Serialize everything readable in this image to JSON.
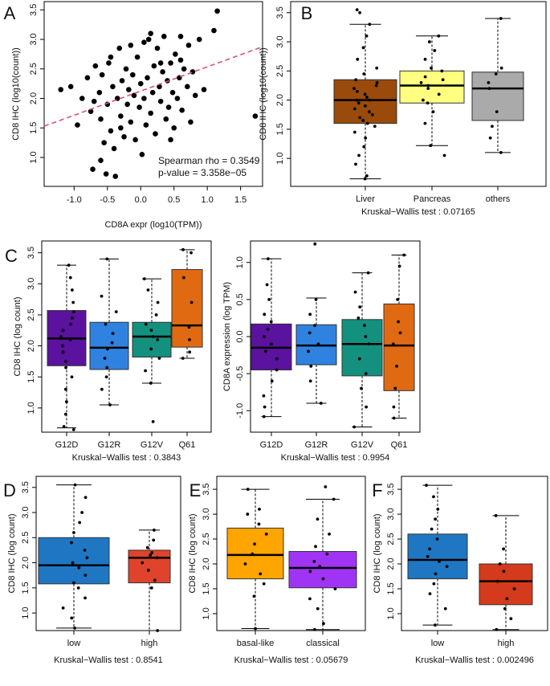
{
  "chart_data": [
    {
      "panel": "A",
      "type": "scatter",
      "ylabel": "CD8 IHC (log10(count))",
      "xlabel": "CD8A expr (log10(TPM))",
      "xlim": [
        -1.45,
        1.83
      ],
      "ylim": [
        0.51,
        3.64
      ],
      "xticks": [
        {
          "value": -1,
          "label": "-1.0"
        },
        {
          "value": -0.5,
          "label": "-0.5"
        },
        {
          "value": 0,
          "label": "0.0"
        },
        {
          "value": 0.5,
          "label": "0.5"
        },
        {
          "value": 1,
          "label": "1.0"
        },
        {
          "value": 1.5,
          "label": "1.5"
        }
      ],
      "yticks": [
        {
          "value": 1,
          "label": "1.0"
        },
        {
          "value": 1.5,
          "label": "1.5"
        },
        {
          "value": 2,
          "label": "2.0"
        },
        {
          "value": 2.5,
          "label": "2.5"
        },
        {
          "value": 3,
          "label": "3.0"
        },
        {
          "value": 3.5,
          "label": "3.5"
        }
      ],
      "x": [
        -1.2,
        -1.05,
        -0.95,
        -0.88,
        -0.8,
        -0.75,
        -0.72,
        -0.68,
        -0.62,
        -0.6,
        -0.58,
        -0.55,
        -0.52,
        -0.5,
        -0.48,
        -0.45,
        -0.42,
        -0.4,
        -0.38,
        -0.35,
        -0.32,
        -0.3,
        -0.28,
        -0.25,
        -0.22,
        -0.2,
        -0.18,
        -0.15,
        -0.12,
        -0.1,
        -0.08,
        -0.05,
        -0.02,
        0.0,
        0.02,
        0.05,
        0.08,
        0.1,
        0.12,
        0.15,
        0.18,
        0.2,
        0.22,
        0.25,
        0.28,
        0.3,
        0.33,
        0.35,
        0.38,
        0.4,
        0.42,
        0.45,
        0.48,
        0.5,
        0.52,
        0.55,
        0.58,
        0.6,
        0.62,
        0.65,
        0.7,
        0.72,
        0.75,
        0.78,
        0.82,
        0.88,
        0.95,
        1.1,
        1.15,
        1.72,
        -0.6,
        -0.3,
        0.3,
        -0.15,
        0.45,
        0.05,
        -0.45,
        0.15,
        0.6,
        -0.7
      ],
      "y": [
        2.15,
        2.2,
        1.55,
        2.0,
        2.35,
        1.78,
        0.8,
        2.55,
        2.1,
        1.65,
        2.4,
        1.25,
        0.72,
        1.9,
        2.6,
        1.45,
        2.2,
        1.15,
        0.68,
        2.0,
        2.85,
        1.7,
        2.3,
        1.35,
        2.5,
        1.9,
        2.15,
        1.6,
        2.4,
        2.05,
        1.3,
        2.7,
        1.85,
        2.25,
        1.05,
        2.95,
        1.55,
        2.35,
        3.0,
        1.75,
        2.1,
        2.55,
        1.4,
        2.85,
        2.2,
        1.95,
        2.45,
        3.05,
        1.65,
        2.3,
        1.85,
        2.6,
        2.1,
        1.5,
        2.75,
        2.0,
        2.35,
        3.05,
        1.8,
        2.5,
        2.2,
        2.9,
        1.6,
        2.45,
        2.05,
        3.0,
        2.15,
        3.15,
        3.48,
        1.7,
        0.95,
        1.5,
        2.6,
        2.9,
        1.3,
        2.0,
        2.7,
        3.1,
        2.65,
        1.95
      ],
      "color": "#000000",
      "fit_line": {
        "x": [
          -1.45,
          1.83
        ],
        "y": [
          1.53,
          2.875
        ],
        "color": "#d9527a"
      },
      "annotations": [
        "Spearman rho = 0.3549",
        "p-value = 3.358e−05"
      ]
    },
    {
      "panel": "B",
      "type": "box",
      "ylabel": "CD8 IHC (log10(count))",
      "xlabel": "Kruskal−Wallis test : 0.07165",
      "ylim": [
        0.52,
        3.69
      ],
      "yticks": [
        {
          "value": 1,
          "label": "1.0"
        },
        {
          "value": 1.5,
          "label": "1.5"
        },
        {
          "value": 2,
          "label": "2.0"
        },
        {
          "value": 2.5,
          "label": "2.5"
        },
        {
          "value": 3,
          "label": "3.0"
        },
        {
          "value": 3.5,
          "label": "3.5"
        }
      ],
      "categories": [
        "Liver",
        "Pancreas",
        "others"
      ],
      "colors": [
        "#9a4a0a",
        "#ffff80",
        "#aaaaaa"
      ],
      "boxes": [
        {
          "low": 0.65,
          "q1": 1.6,
          "median": 2.0,
          "q3": 2.35,
          "high": 3.3
        },
        {
          "low": 1.22,
          "q1": 1.95,
          "median": 2.25,
          "q3": 2.5,
          "high": 3.1
        },
        {
          "low": 1.1,
          "q1": 1.65,
          "median": 2.2,
          "q3": 2.48,
          "high": 3.4
        }
      ],
      "points": [
        [
          0.65,
          0.7,
          0.9,
          1.05,
          1.2,
          1.35,
          1.45,
          1.55,
          1.6,
          1.65,
          1.7,
          1.75,
          1.8,
          1.85,
          1.9,
          1.95,
          2.0,
          2.0,
          2.05,
          2.1,
          2.15,
          2.2,
          2.25,
          2.3,
          2.35,
          2.45,
          2.55,
          2.7,
          2.9,
          3.1,
          3.3,
          3.5,
          3.55
        ],
        [
          1.05,
          1.22,
          1.6,
          1.8,
          1.95,
          2.0,
          2.1,
          2.2,
          2.25,
          2.3,
          2.35,
          2.4,
          2.5,
          2.55,
          2.7,
          2.85,
          3.0,
          3.1
        ],
        [
          1.1,
          1.35,
          1.55,
          1.8,
          2.2,
          2.3,
          2.45,
          2.55,
          3.4
        ]
      ]
    },
    {
      "panel": "C",
      "type": "box",
      "ylabel": "CD8 IHC (log count)",
      "xlabel": "Kruskal−Wallis test : 0.3843",
      "ylim": [
        0.61,
        3.69
      ],
      "yticks": [
        {
          "value": 1,
          "label": "1.0"
        },
        {
          "value": 1.5,
          "label": "1.5"
        },
        {
          "value": 2,
          "label": "2.0"
        },
        {
          "value": 2.5,
          "label": "2.5"
        },
        {
          "value": 3,
          "label": "3.0"
        },
        {
          "value": 3.5,
          "label": "3.5"
        }
      ],
      "categories": [
        "G12D",
        "G12R",
        "G12V",
        "Q61"
      ],
      "colors": [
        "#5b129e",
        "#2f82e0",
        "#14907f",
        "#e06a12"
      ],
      "boxes": [
        {
          "low": 0.68,
          "q1": 1.68,
          "median": 2.12,
          "q3": 2.57,
          "high": 3.3
        },
        {
          "low": 1.05,
          "q1": 1.62,
          "median": 1.97,
          "q3": 2.38,
          "high": 3.4
        },
        {
          "low": 1.4,
          "q1": 1.82,
          "median": 2.15,
          "q3": 2.38,
          "high": 3.08
        },
        {
          "low": 1.8,
          "q1": 1.98,
          "median": 2.33,
          "q3": 3.23,
          "high": 3.55
        }
      ],
      "points": [
        [
          0.65,
          0.7,
          0.9,
          1.1,
          1.3,
          1.5,
          1.65,
          1.75,
          1.9,
          2.0,
          2.1,
          2.15,
          2.25,
          2.35,
          2.45,
          2.55,
          2.7,
          2.9,
          3.1,
          3.3
        ],
        [
          1.05,
          1.3,
          1.5,
          1.65,
          1.8,
          1.95,
          2.05,
          2.2,
          2.35,
          2.55,
          2.8,
          3.4
        ],
        [
          0.78,
          1.4,
          1.6,
          1.8,
          1.95,
          2.1,
          2.15,
          2.25,
          2.35,
          2.5,
          2.7,
          2.9,
          3.08
        ],
        [
          1.8,
          1.9,
          2.1,
          2.3,
          2.7,
          3.1,
          3.5,
          3.55
        ]
      ]
    },
    {
      "type": "box",
      "ylabel": "CD8A expression (log TPM)",
      "xlabel": "Kruskal−Wallis test : 0.9954",
      "ylim": [
        -1.29,
        1.29
      ],
      "yticks": [
        {
          "value": -1,
          "label": "-1.0"
        },
        {
          "value": -0.5,
          "label": "-0.5"
        },
        {
          "value": 0,
          "label": "0.0"
        },
        {
          "value": 0.5,
          "label": "0.5"
        },
        {
          "value": 1,
          "label": "1.0"
        }
      ],
      "categories": [
        "G12D",
        "G12R",
        "G12V",
        "Q61"
      ],
      "colors": [
        "#5b129e",
        "#2f82e0",
        "#14907f",
        "#e06a12"
      ],
      "boxes": [
        {
          "low": -1.08,
          "q1": -0.45,
          "median": -0.15,
          "q3": 0.17,
          "high": 1.05
        },
        {
          "low": -0.9,
          "q1": -0.38,
          "median": -0.12,
          "q3": 0.16,
          "high": 0.52
        },
        {
          "low": -1.22,
          "q1": -0.53,
          "median": -0.1,
          "q3": 0.23,
          "high": 0.86
        },
        {
          "low": -1.1,
          "q1": -0.73,
          "median": -0.12,
          "q3": 0.44,
          "high": 1.1
        }
      ],
      "points": [
        [
          -1.08,
          -0.95,
          -0.8,
          -0.6,
          -0.45,
          -0.3,
          -0.2,
          -0.1,
          0.0,
          0.1,
          0.2,
          0.3,
          0.5,
          0.7,
          1.05
        ],
        [
          -0.9,
          -0.6,
          -0.4,
          -0.2,
          -0.1,
          0.05,
          0.15,
          0.3,
          0.5,
          1.25
        ],
        [
          -1.22,
          -0.95,
          -0.7,
          -0.5,
          -0.3,
          -0.1,
          0.0,
          0.15,
          0.25,
          0.4,
          0.6,
          0.86
        ],
        [
          -1.1,
          -0.95,
          -0.7,
          -0.4,
          -0.1,
          0.05,
          0.2,
          0.5,
          0.95,
          1.1
        ]
      ]
    },
    {
      "panel": "D",
      "type": "box",
      "ylabel": "CD8 IHC (log count)",
      "xlabel": "Kruskal−Wallis test : 0.8541",
      "ylim": [
        0.65,
        3.72
      ],
      "yticks": [
        {
          "value": 1,
          "label": "1.0"
        },
        {
          "value": 1.5,
          "label": "1.5"
        },
        {
          "value": 2,
          "label": "2.0"
        },
        {
          "value": 2.5,
          "label": "2.5"
        },
        {
          "value": 3,
          "label": "3.0"
        },
        {
          "value": 3.5,
          "label": "3.5"
        }
      ],
      "categories": [
        "low",
        "high"
      ],
      "colors": [
        "#1f77c4",
        "#e0432c"
      ],
      "boxes": [
        {
          "low": 0.7,
          "q1": 1.58,
          "median": 1.95,
          "q3": 2.5,
          "high": 3.55
        },
        {
          "low": 0.65,
          "q1": 1.6,
          "median": 2.1,
          "q3": 2.25,
          "high": 2.65
        }
      ],
      "points": [
        [
          0.7,
          0.9,
          1.1,
          1.3,
          1.5,
          1.6,
          1.75,
          1.9,
          2.0,
          2.1,
          2.25,
          2.4,
          2.6,
          2.8,
          3.0,
          3.3,
          3.55
        ],
        [
          0.65,
          1.5,
          1.65,
          1.85,
          2.0,
          2.1,
          2.15,
          2.2,
          2.3,
          2.45,
          2.65
        ]
      ]
    },
    {
      "panel": "E",
      "type": "box",
      "ylabel": "CD8 IHC (log count)",
      "xlabel": "Kruskal−Wallis test : 0.05679",
      "ylim": [
        0.66,
        3.76
      ],
      "yticks": [
        {
          "value": 1,
          "label": "1.0"
        },
        {
          "value": 1.5,
          "label": "1.5"
        },
        {
          "value": 2,
          "label": "2.0"
        },
        {
          "value": 2.5,
          "label": "2.5"
        },
        {
          "value": 3,
          "label": "3.0"
        },
        {
          "value": 3.5,
          "label": "3.5"
        }
      ],
      "categories": [
        "basal-like",
        "classical"
      ],
      "colors": [
        "#ffa500",
        "#a034f5"
      ],
      "boxes": [
        {
          "low": 0.7,
          "q1": 1.7,
          "median": 2.18,
          "q3": 2.72,
          "high": 3.5
        },
        {
          "low": 0.68,
          "q1": 1.52,
          "median": 1.92,
          "q3": 2.25,
          "high": 3.3
        }
      ],
      "points": [
        [
          0.7,
          1.35,
          1.6,
          1.8,
          2.0,
          2.2,
          2.4,
          2.6,
          2.8,
          3.0,
          3.1,
          3.5
        ],
        [
          0.68,
          0.8,
          1.1,
          1.3,
          1.5,
          1.7,
          1.85,
          1.95,
          2.05,
          2.2,
          2.35,
          2.6,
          2.9,
          3.3,
          3.55
        ]
      ]
    },
    {
      "panel": "F",
      "type": "box",
      "ylabel": "CD8 IHC (log count)",
      "xlabel": "Kruskal−Wallis test : 0.002496",
      "ylim": [
        0.66,
        3.76
      ],
      "yticks": [
        {
          "value": 1,
          "label": "1.0"
        },
        {
          "value": 1.5,
          "label": "1.5"
        },
        {
          "value": 2,
          "label": "2.0"
        },
        {
          "value": 2.5,
          "label": "2.5"
        },
        {
          "value": 3,
          "label": "3.0"
        },
        {
          "value": 3.5,
          "label": "3.5"
        }
      ],
      "categories": [
        "low",
        "high"
      ],
      "colors": [
        "#1f77c4",
        "#d43a1c"
      ],
      "boxes": [
        {
          "low": 0.77,
          "q1": 1.7,
          "median": 2.08,
          "q3": 2.6,
          "high": 3.58
        },
        {
          "low": 0.68,
          "q1": 1.18,
          "median": 1.65,
          "q3": 2.0,
          "high": 2.97
        }
      ],
      "points": [
        [
          0.77,
          1.1,
          1.4,
          1.6,
          1.8,
          1.95,
          2.05,
          2.15,
          2.3,
          2.5,
          2.7,
          2.9,
          3.1,
          3.35,
          3.58
        ],
        [
          0.68,
          0.9,
          1.1,
          1.3,
          1.5,
          1.65,
          1.85,
          2.0,
          2.3,
          2.97
        ]
      ]
    }
  ]
}
